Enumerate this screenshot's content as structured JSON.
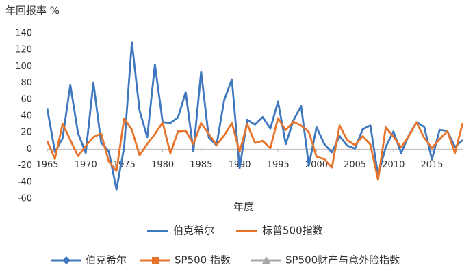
{
  "chart_data": {
    "type": "line",
    "y_label": "年回报率 %",
    "x_label": "年度",
    "x": [
      1965,
      1966,
      1967,
      1968,
      1969,
      1970,
      1971,
      1972,
      1973,
      1974,
      1975,
      1976,
      1977,
      1978,
      1979,
      1980,
      1981,
      1982,
      1983,
      1984,
      1985,
      1986,
      1987,
      1988,
      1989,
      1990,
      1991,
      1992,
      1993,
      1994,
      1995,
      1996,
      1997,
      1998,
      1999,
      2000,
      2001,
      2002,
      2003,
      2004,
      2005,
      2006,
      2007,
      2008,
      2009,
      2010,
      2011,
      2012,
      2013,
      2014,
      2015,
      2016,
      2017,
      2018,
      2019
    ],
    "series": [
      {
        "name": "伯克希尔",
        "color": "#3f78bf",
        "values": [
          49.5,
          -3.4,
          13.3,
          77.8,
          19.4,
          -4.6,
          80.5,
          8.1,
          -2.5,
          -48.7,
          2.5,
          129.3,
          46.8,
          14.5,
          102.5,
          32.8,
          31.8,
          38.4,
          69.0,
          -2.7,
          93.7,
          14.2,
          4.6,
          59.3,
          84.6,
          -23.1,
          35.6,
          29.8,
          38.9,
          25.0,
          57.4,
          6.2,
          34.9,
          52.2,
          -19.9,
          26.6,
          6.5,
          -3.8,
          15.8,
          4.3,
          0.8,
          24.1,
          28.7,
          -31.8,
          2.7,
          21.4,
          -4.7,
          16.8,
          32.7,
          27.0,
          -12.5,
          23.4,
          21.9,
          2.8,
          11.0
        ]
      },
      {
        "name": "标普500指数",
        "color": "#e8732a",
        "values": [
          10.0,
          -11.7,
          30.9,
          11.0,
          -8.4,
          3.9,
          14.6,
          18.9,
          -14.8,
          -26.4,
          37.2,
          23.6,
          -7.4,
          6.4,
          18.2,
          32.3,
          -5.0,
          21.4,
          22.4,
          6.1,
          31.6,
          18.6,
          5.1,
          16.6,
          31.7,
          -3.1,
          30.5,
          7.6,
          10.1,
          1.3,
          37.6,
          23.0,
          33.4,
          28.6,
          21.0,
          -9.1,
          -11.9,
          -22.1,
          28.7,
          10.9,
          4.9,
          15.8,
          5.5,
          -37.0,
          26.5,
          15.1,
          2.1,
          16.0,
          32.4,
          13.7,
          1.4,
          12.0,
          21.8,
          -4.4,
          31.5
        ]
      }
    ],
    "xlim": [
      1965,
      2019
    ],
    "xticks": [
      1965,
      1970,
      1975,
      1980,
      1985,
      1990,
      1995,
      2000,
      2005,
      2010,
      2015
    ],
    "ylim": [
      -60,
      140
    ],
    "yticks": [
      -60,
      -40,
      -20,
      0,
      20,
      40,
      60,
      80,
      100,
      120,
      140
    ],
    "grid": false,
    "legend2": [
      {
        "name": "伯克希尔",
        "color": "#3f78bf",
        "marker": "diamond"
      },
      {
        "name": "SP500 指数",
        "color": "#e8732a",
        "marker": "square"
      },
      {
        "name": "SP500财产与意外险指数",
        "color": "#a5a5a5",
        "marker": "triangle"
      }
    ]
  }
}
